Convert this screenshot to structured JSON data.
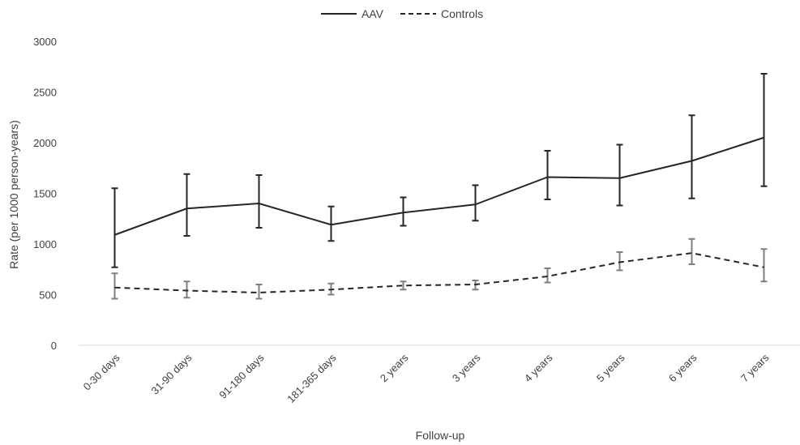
{
  "chart_data": {
    "type": "line",
    "title": "",
    "xlabel": "Follow-up",
    "ylabel": "Rate (per 1000 person-years)",
    "ylim": [
      0,
      3000
    ],
    "yticks": [
      "0",
      "500",
      "1000",
      "1500",
      "2000",
      "2500",
      "3000"
    ],
    "categories": [
      "0-30 days",
      "31-90 days",
      "91-180 days",
      "181-365 days",
      "2 years",
      "3 years",
      "4 years",
      "5 years",
      "6 years",
      "7 years"
    ],
    "grid": false,
    "legend_position": "top-center",
    "series": [
      {
        "name": "AAV",
        "line_style": "solid",
        "color": "#262626",
        "values": [
          1090,
          1350,
          1400,
          1190,
          1310,
          1390,
          1660,
          1650,
          1820,
          2050
        ],
        "error_low": [
          770,
          1080,
          1160,
          1030,
          1180,
          1230,
          1440,
          1380,
          1450,
          1570
        ],
        "error_high": [
          1550,
          1690,
          1680,
          1370,
          1460,
          1580,
          1920,
          1980,
          2270,
          2680
        ]
      },
      {
        "name": "Controls",
        "line_style": "dashed",
        "color": "#262626",
        "error_color": "#7f7f7f",
        "values": [
          570,
          540,
          520,
          550,
          590,
          600,
          680,
          820,
          910,
          770
        ],
        "error_low": [
          460,
          470,
          460,
          500,
          550,
          550,
          620,
          740,
          800,
          630
        ],
        "error_high": [
          710,
          630,
          600,
          610,
          630,
          640,
          760,
          920,
          1050,
          950
        ]
      }
    ]
  }
}
